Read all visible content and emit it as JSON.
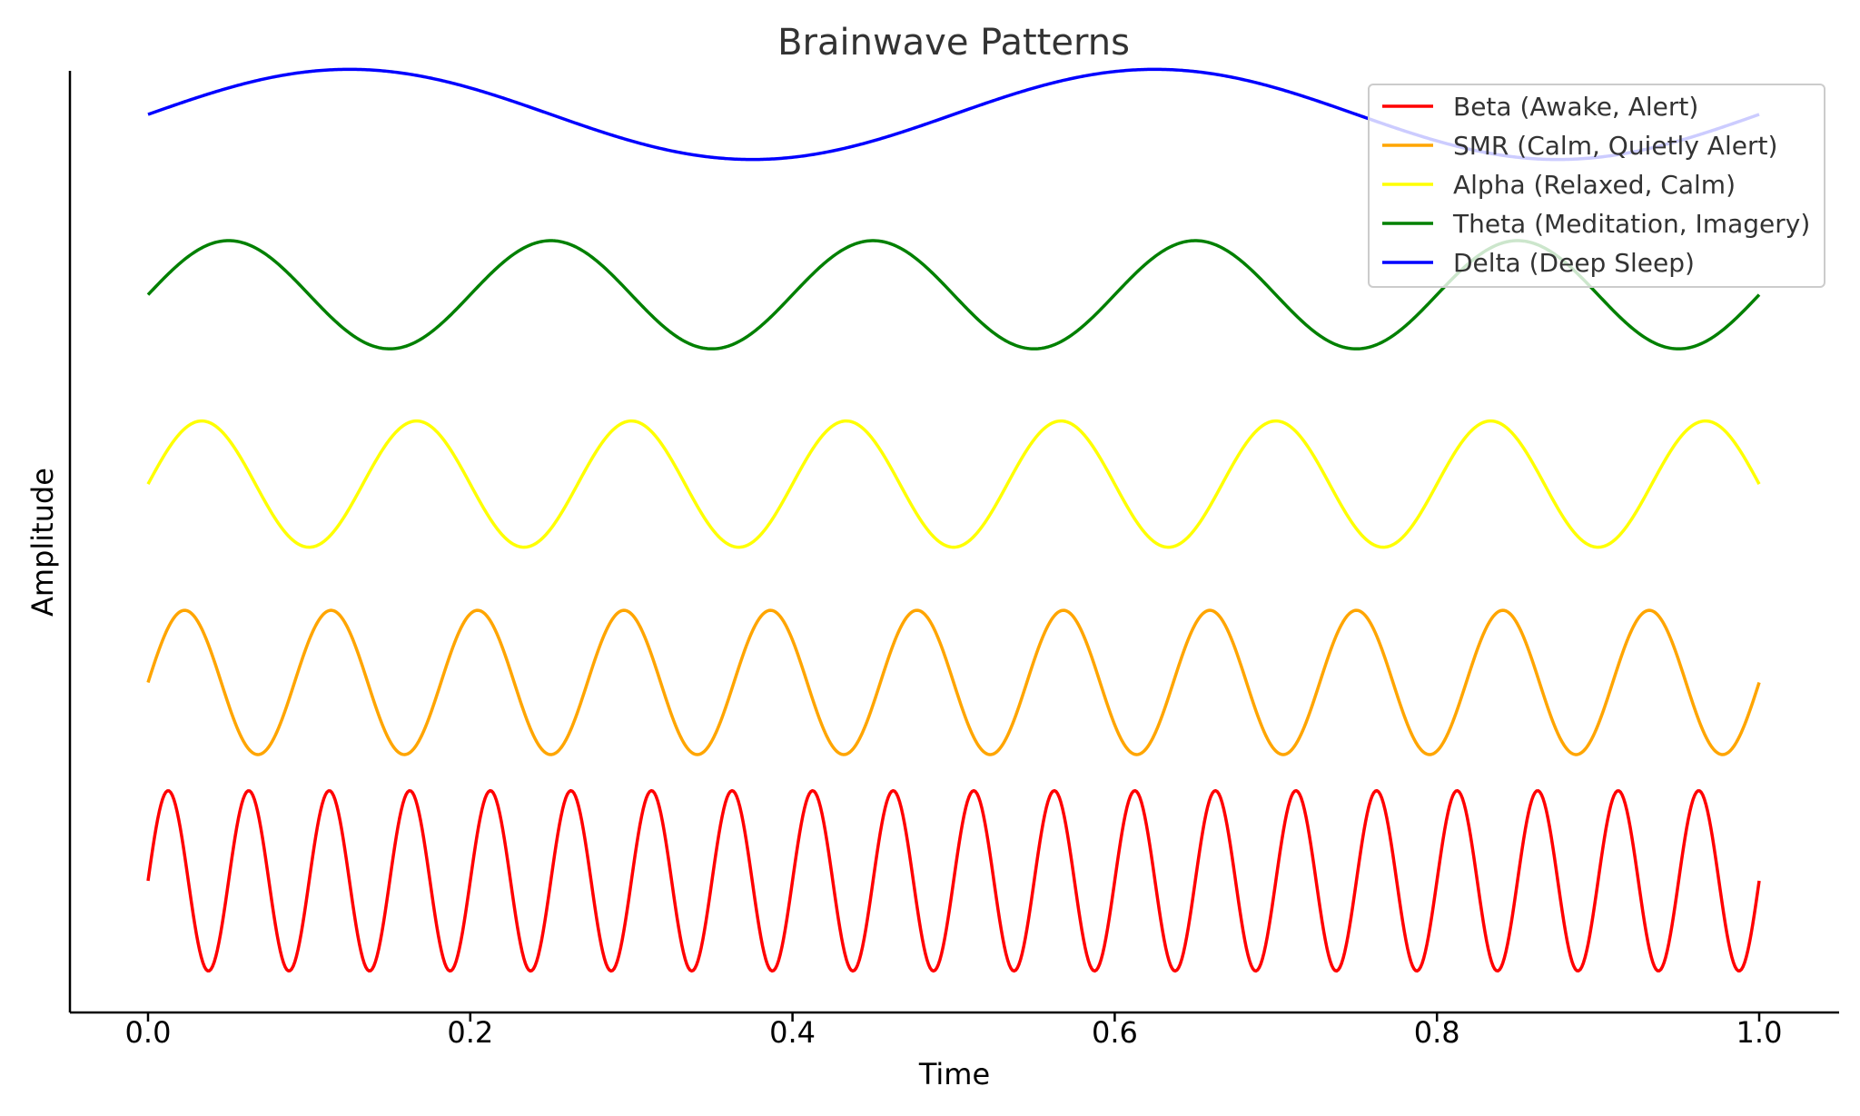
{
  "chart_data": {
    "type": "line",
    "title": "Brainwave Patterns",
    "xlabel": "Time",
    "ylabel": "Amplitude",
    "xlim": [
      -0.05,
      1.05
    ],
    "xticks": [
      0.0,
      0.2,
      0.4,
      0.6,
      0.8,
      1.0
    ],
    "xtick_labels": [
      "0.0",
      "0.2",
      "0.4",
      "0.6",
      "0.8",
      "1.0"
    ],
    "yticks_shown": false,
    "grid": false,
    "legend_position": "top-right",
    "sampling": {
      "start": 0,
      "end": 1,
      "points": 1000
    },
    "series": [
      {
        "name": "Beta (Awake, Alert)",
        "color": "#ff0000",
        "frequency_hz": 20,
        "amplitude": 1.0,
        "offset": 0
      },
      {
        "name": "SMR (Calm, Quietly Alert)",
        "color": "#ffa500",
        "frequency_hz": 11,
        "amplitude": 0.8,
        "offset": 2.2
      },
      {
        "name": "Alpha (Relaxed, Calm)",
        "color": "#ffff00",
        "frequency_hz": 7.5,
        "amplitude": 0.7,
        "offset": 4.4
      },
      {
        "name": "Theta (Meditation, Imagery)",
        "color": "#008000",
        "frequency_hz": 5,
        "amplitude": 0.6,
        "offset": 6.5
      },
      {
        "name": "Delta (Deep Sleep)",
        "color": "#0000ff",
        "frequency_hz": 2,
        "amplitude": 0.5,
        "offset": 8.5
      }
    ]
  }
}
